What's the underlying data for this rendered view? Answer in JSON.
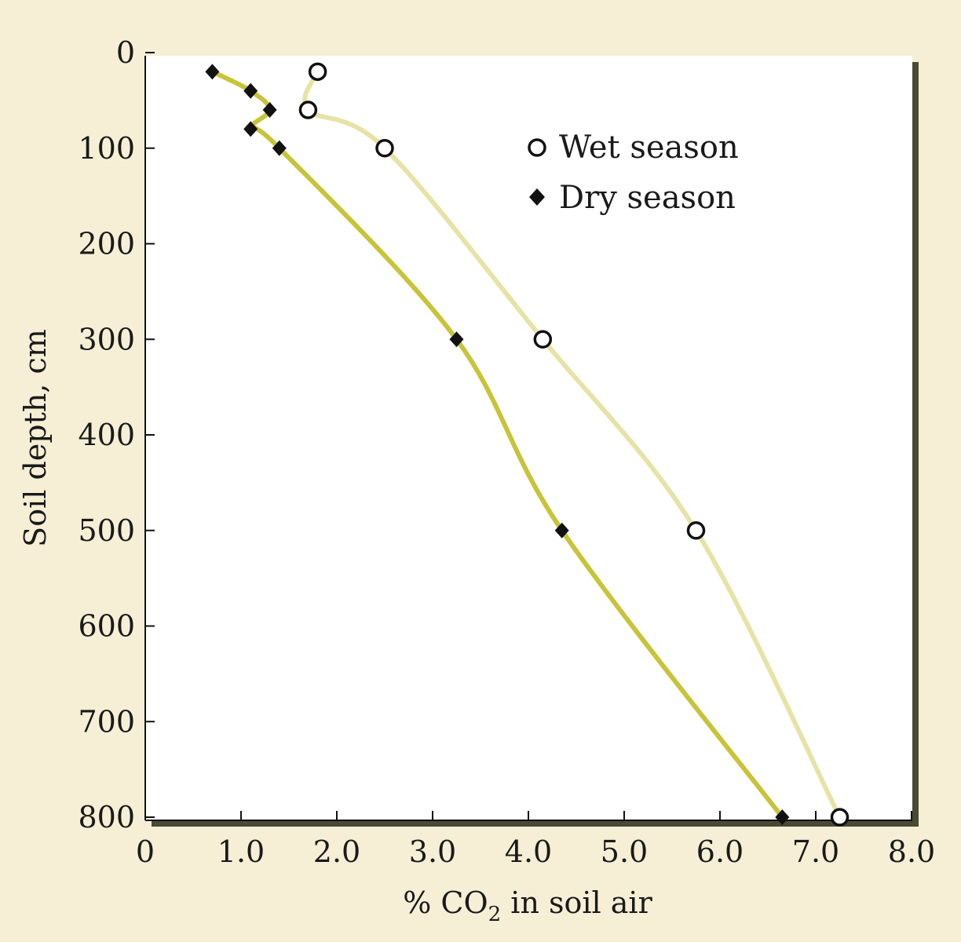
{
  "colors": {
    "background": "#f6efd5",
    "plot_background": "#ffffff",
    "frame_shadow": "#4a4a34",
    "wet_line": "#e6e3a6",
    "dry_line": "#c8c43a",
    "marker": "#111111"
  },
  "chart_data": {
    "type": "line",
    "title": "",
    "xlabel_prefix": "% CO",
    "xlabel_sub": "2",
    "xlabel_suffix": " in soil air",
    "ylabel": "Soil depth, cm",
    "xlim": [
      0,
      8.0
    ],
    "ylim": [
      800,
      0
    ],
    "y_inverted": true,
    "x_ticks": [
      "0",
      "1.0",
      "2.0",
      "3.0",
      "4.0",
      "5.0",
      "6.0",
      "7.0",
      "8.0"
    ],
    "x_tick_values": [
      0,
      1,
      2,
      3,
      4,
      5,
      6,
      7,
      8
    ],
    "y_ticks": [
      "0",
      "100",
      "200",
      "300",
      "400",
      "500",
      "600",
      "700",
      "800"
    ],
    "y_tick_values": [
      0,
      100,
      200,
      300,
      400,
      500,
      600,
      700,
      800
    ],
    "grid": false,
    "legend_position": "top-right",
    "series": [
      {
        "name": "Wet season",
        "marker": "open-circle",
        "points": [
          [
            1.8,
            20
          ],
          [
            1.7,
            60
          ],
          [
            2.5,
            100
          ],
          [
            4.15,
            300
          ],
          [
            5.75,
            500
          ],
          [
            7.25,
            800
          ]
        ]
      },
      {
        "name": "Dry season",
        "marker": "diamond",
        "points": [
          [
            0.7,
            20
          ],
          [
            1.1,
            40
          ],
          [
            1.3,
            60
          ],
          [
            1.1,
            80
          ],
          [
            1.4,
            100
          ],
          [
            3.25,
            300
          ],
          [
            4.35,
            500
          ],
          [
            6.65,
            800
          ]
        ]
      }
    ]
  }
}
